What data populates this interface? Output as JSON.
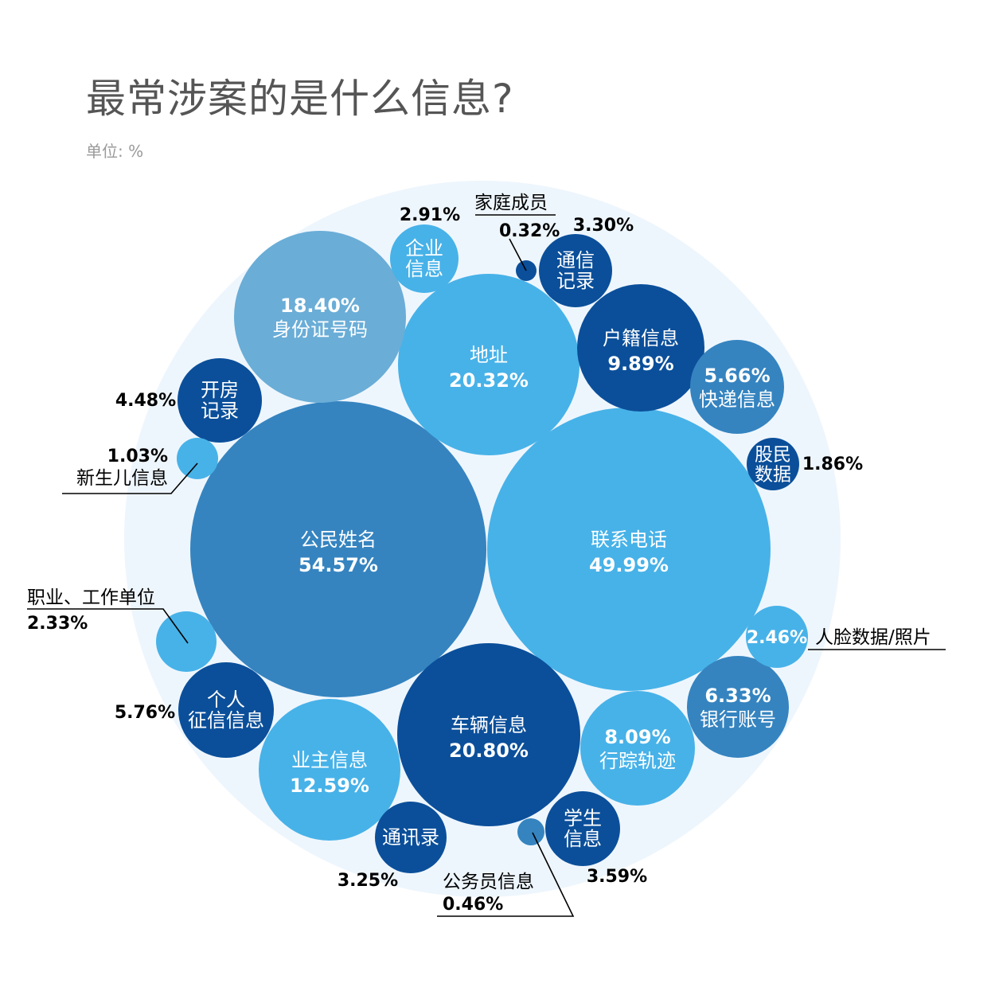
{
  "title": "最常涉案的是什么信息?",
  "unit": "单位: %",
  "chart_data": {
    "type": "bubble",
    "title": "最常涉案的是什么信息?",
    "unit": "单位: %",
    "colors": {
      "background_circle": "#eef6fd",
      "light": "#47b2e8",
      "medium": "#3584c0",
      "soft": "#6aadd7",
      "dark": "#0b4f9a",
      "outside_text": "#000000"
    },
    "items": [
      {
        "name": "公民姓名",
        "value": 54.57,
        "color": "#3584c0"
      },
      {
        "name": "联系电话",
        "value": 49.99,
        "color": "#47b2e8"
      },
      {
        "name": "车辆信息",
        "value": 20.8,
        "color": "#0b4f9a"
      },
      {
        "name": "地址",
        "value": 20.32,
        "color": "#47b2e8"
      },
      {
        "name": "身份证号码",
        "value": 18.4,
        "color": "#6aadd7"
      },
      {
        "name": "业主信息",
        "value": 12.59,
        "color": "#47b2e8"
      },
      {
        "name": "户籍信息",
        "value": 9.89,
        "color": "#0b4f9a"
      },
      {
        "name": "行踪轨迹",
        "value": 8.09,
        "color": "#47b2e8"
      },
      {
        "name": "银行账号",
        "value": 6.33,
        "color": "#3584c0"
      },
      {
        "name": "个人征信信息",
        "value": 5.76,
        "color": "#0b4f9a"
      },
      {
        "name": "快递信息",
        "value": 5.66,
        "color": "#3584c0"
      },
      {
        "name": "开房记录",
        "value": 4.48,
        "color": "#0b4f9a"
      },
      {
        "name": "学生信息",
        "value": 3.59,
        "color": "#0b4f9a"
      },
      {
        "name": "通信记录",
        "value": 3.3,
        "color": "#0b4f9a"
      },
      {
        "name": "通讯录",
        "value": 3.25,
        "color": "#0b4f9a"
      },
      {
        "name": "企业信息",
        "value": 2.91,
        "color": "#47b2e8"
      },
      {
        "name": "人脸数据/照片",
        "value": 2.46,
        "color": "#47b2e8"
      },
      {
        "name": "职业、工作单位",
        "value": 2.33,
        "color": "#47b2e8"
      },
      {
        "name": "股民数据",
        "value": 1.86,
        "color": "#0b4f9a"
      },
      {
        "name": "新生儿信息",
        "value": 1.03,
        "color": "#47b2e8"
      },
      {
        "name": "公务员信息",
        "value": 0.46,
        "color": "#3584c0"
      },
      {
        "name": "家庭成员",
        "value": 0.32,
        "color": "#0b4f9a"
      }
    ]
  }
}
